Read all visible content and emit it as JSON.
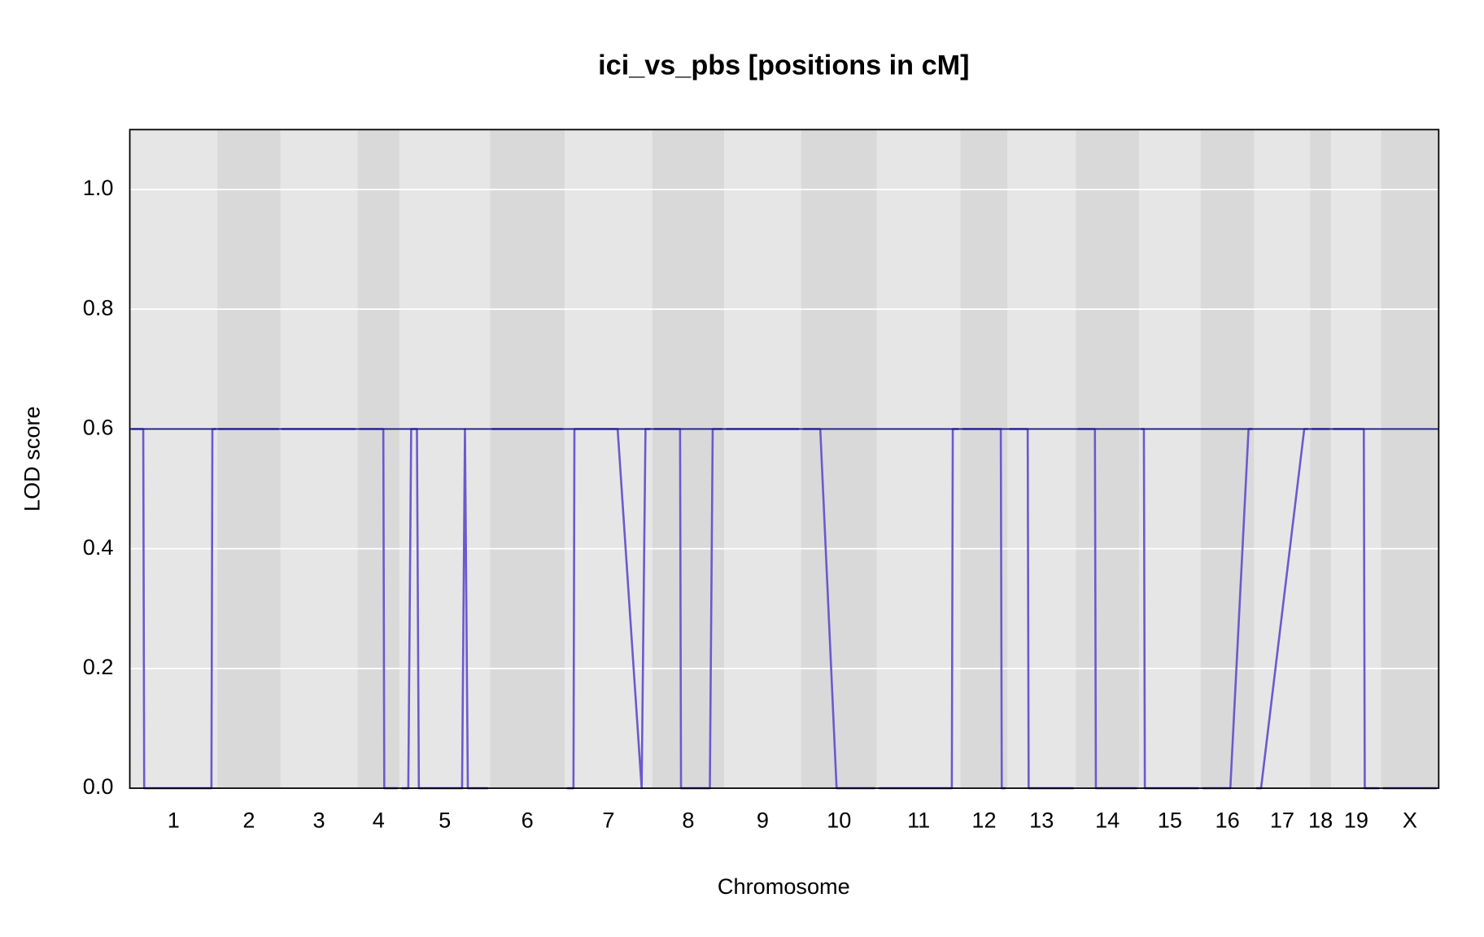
{
  "chart_data": {
    "type": "line",
    "title": "ici_vs_pbs [positions in cM]",
    "xlabel": "Chromosome",
    "ylabel": "LOD score",
    "chromosomes": [
      "1",
      "2",
      "3",
      "4",
      "5",
      "6",
      "7",
      "8",
      "9",
      "10",
      "11",
      "12",
      "13",
      "14",
      "15",
      "16",
      "17",
      "18",
      "19",
      "X"
    ],
    "chrom_bounds": [
      0,
      91,
      157,
      237,
      281,
      375,
      453,
      544,
      619,
      699,
      778,
      865,
      914,
      985,
      1051,
      1115,
      1171,
      1229,
      1251,
      1303,
      1363
    ],
    "band_colors": [
      "#e6e6e6",
      "#d9d9d9"
    ],
    "xlim": [
      0,
      1363
    ],
    "ylim": [
      0,
      1.1
    ],
    "yticks": [
      {
        "value": 0,
        "label": "0.0"
      },
      0.2,
      0.4,
      0.6,
      0.8,
      {
        "value": 1,
        "label": "1.0"
      }
    ],
    "grid": true,
    "hline": {
      "value": 0.6,
      "color": "#1c1c8a"
    },
    "series": [
      {
        "color": "#6a5acd",
        "x": [
          2,
          14,
          15,
          85,
          86,
          90,
          null,
          92,
          155,
          null,
          158,
          235,
          null,
          239,
          264,
          265,
          279,
          null,
          283,
          290,
          293,
          299,
          301,
          346,
          349,
          352,
          373,
          null,
          377,
          451,
          null,
          455,
          462,
          463,
          508,
          533,
          537,
          542,
          null,
          546,
          573,
          574,
          604,
          607,
          617,
          null,
          621,
          697,
          null,
          701,
          719,
          736,
          776,
          null,
          780,
          856,
          857,
          863,
          null,
          867,
          907,
          908,
          912,
          null,
          916,
          935,
          936,
          983,
          null,
          987,
          1005,
          1006,
          1049,
          null,
          1053,
          1056,
          1057,
          1113,
          null,
          1117,
          1146,
          1165,
          1169,
          null,
          1173,
          1178,
          1223,
          1227,
          null,
          1231,
          1249,
          null,
          1253,
          1285,
          1286,
          1301,
          null,
          1305,
          1361
        ],
        "values": [
          0.6,
          0.6,
          0,
          0,
          0.6,
          0.6,
          null,
          0.6,
          0.6,
          null,
          0.6,
          0.6,
          null,
          0.6,
          0.6,
          0,
          0,
          null,
          0,
          0,
          0.6,
          0.6,
          0,
          0,
          0.6,
          0,
          0,
          null,
          0.6,
          0.6,
          null,
          0,
          0,
          0.6,
          0.6,
          0,
          0.6,
          0.6,
          null,
          0.6,
          0.6,
          0,
          0,
          0.6,
          0.6,
          null,
          0.6,
          0.6,
          null,
          0.6,
          0.6,
          0,
          0,
          null,
          0,
          0,
          0.6,
          0.6,
          null,
          0.6,
          0.6,
          0,
          0,
          null,
          0.6,
          0.6,
          0,
          0,
          null,
          0.6,
          0.6,
          0,
          0,
          null,
          0.6,
          0.6,
          0,
          0,
          null,
          0,
          0,
          0.6,
          0.6,
          null,
          0,
          0,
          0.6,
          0.6,
          null,
          0.6,
          0.6,
          null,
          0.6,
          0.6,
          0,
          0,
          null,
          0,
          0
        ]
      }
    ]
  }
}
